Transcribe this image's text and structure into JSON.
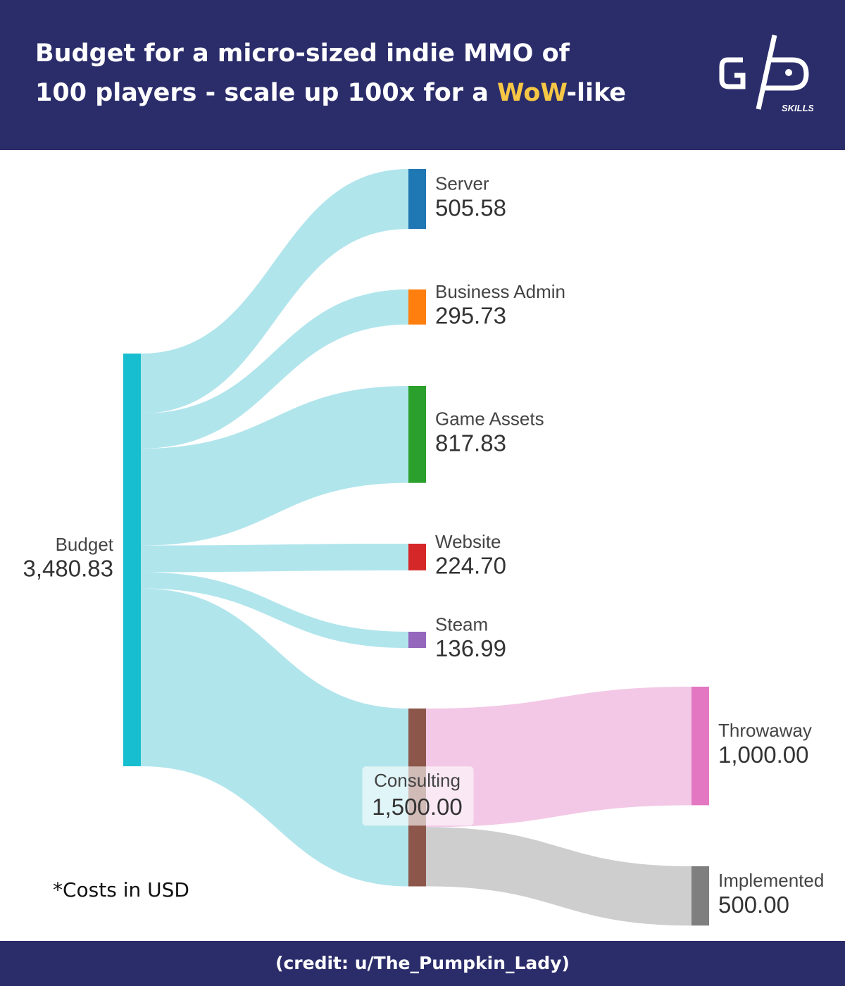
{
  "header": {
    "title_line1": "Budget for a micro-sized indie MMO of",
    "title_line2_start": "100 players - scale up 100x for a ",
    "title_highlight": "WoW",
    "title_line2_end": "-like",
    "logo_text": "SKILLS"
  },
  "chart_data": {
    "type": "sankey",
    "nodes": [
      {
        "name": "Budget",
        "value": 3480.83,
        "value_label": "3,480.83",
        "color": "#17becf"
      },
      {
        "name": "Server",
        "value": 505.58,
        "value_label": "505.58",
        "color": "#1f77b4"
      },
      {
        "name": "Business Admin",
        "value": 295.73,
        "value_label": "295.73",
        "color": "#ff7f0e"
      },
      {
        "name": "Game Assets",
        "value": 817.83,
        "value_label": "817.83",
        "color": "#2ca02c"
      },
      {
        "name": "Website",
        "value": 224.7,
        "value_label": "224.70",
        "color": "#d62728"
      },
      {
        "name": "Steam",
        "value": 136.99,
        "value_label": "136.99",
        "color": "#9467bd"
      },
      {
        "name": "Consulting",
        "value": 1500.0,
        "value_label": "1,500.00",
        "color": "#8c564b"
      },
      {
        "name": "Throwaway",
        "value": 1000.0,
        "value_label": "1,000.00",
        "color": "#e377c2"
      },
      {
        "name": "Implemented",
        "value": 500.0,
        "value_label": "500.00",
        "color": "#7f7f7f"
      }
    ],
    "links": [
      {
        "source": 0,
        "target": 1,
        "value": 505.58,
        "color": "#a8e2ea"
      },
      {
        "source": 0,
        "target": 2,
        "value": 295.73,
        "color": "#a8e2ea"
      },
      {
        "source": 0,
        "target": 3,
        "value": 817.83,
        "color": "#a8e2ea"
      },
      {
        "source": 0,
        "target": 4,
        "value": 224.7,
        "color": "#a8e2ea"
      },
      {
        "source": 0,
        "target": 5,
        "value": 136.99,
        "color": "#a8e2ea"
      },
      {
        "source": 0,
        "target": 6,
        "value": 1500.0,
        "color": "#a8e2ea"
      },
      {
        "source": 6,
        "target": 7,
        "value": 1000.0,
        "color": "#f2c2e3"
      },
      {
        "source": 6,
        "target": 8,
        "value": 500.0,
        "color": "#c9c9c9"
      }
    ],
    "footnote": "*Costs in USD"
  },
  "footer": {
    "credit": "(credit: u/The_Pumpkin_Lady)"
  }
}
